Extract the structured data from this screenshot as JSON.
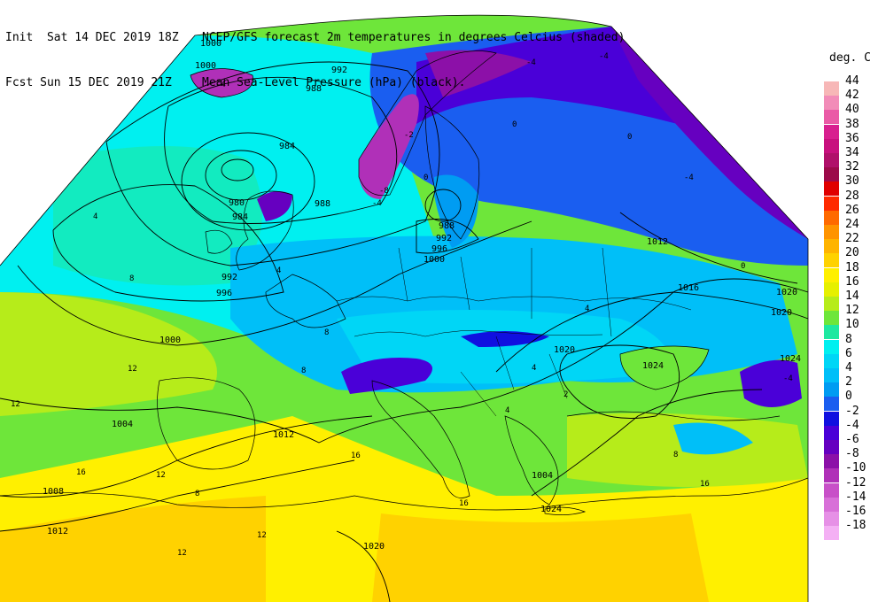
{
  "header": {
    "left_line1": "Init  Sat 14 DEC 2019 18Z",
    "left_line2": "Fcst Sun 15 DEC 2019 21Z",
    "right_line1": "NCEP/GFS forecast 2m temperatures in degrees Celcius (shaded)",
    "right_line2": "Mean Sea-Level Pressure (hPa) (black)."
  },
  "legend": {
    "title": "deg. C",
    "entries": [
      {
        "label": "44",
        "color": "#f7b7b7"
      },
      {
        "label": "42",
        "color": "#f28cb8"
      },
      {
        "label": "40",
        "color": "#ea5aa6"
      },
      {
        "label": "38",
        "color": "#d81f8f"
      },
      {
        "label": "36",
        "color": "#c8107e"
      },
      {
        "label": "34",
        "color": "#b0106a"
      },
      {
        "label": "32",
        "color": "#9c0a4a"
      },
      {
        "label": "30",
        "color": "#e00000"
      },
      {
        "label": "28",
        "color": "#ff2a00"
      },
      {
        "label": "26",
        "color": "#ff6a00"
      },
      {
        "label": "24",
        "color": "#ff9400"
      },
      {
        "label": "22",
        "color": "#ffb400"
      },
      {
        "label": "20",
        "color": "#ffd200"
      },
      {
        "label": "18",
        "color": "#fff000"
      },
      {
        "label": "16",
        "color": "#e6f000"
      },
      {
        "label": "14",
        "color": "#b6ec1a"
      },
      {
        "label": "12",
        "color": "#6ee63a"
      },
      {
        "label": "10",
        "color": "#1ee8a0"
      },
      {
        "label": "8",
        "color": "#00f0f0"
      },
      {
        "label": "6",
        "color": "#00d6f6"
      },
      {
        "label": "4",
        "color": "#00bff8"
      },
      {
        "label": "2",
        "color": "#009cf2"
      },
      {
        "label": "0",
        "color": "#1a5ef0"
      },
      {
        "label": "-2",
        "color": "#1010e0"
      },
      {
        "label": "-4",
        "color": "#4a00d8"
      },
      {
        "label": "-6",
        "color": "#6600c0"
      },
      {
        "label": "-8",
        "color": "#8c10a8"
      },
      {
        "label": "-10",
        "color": "#b030b8"
      },
      {
        "label": "-12",
        "color": "#c850c8"
      },
      {
        "label": "-14",
        "color": "#d870d8"
      },
      {
        "label": "-16",
        "color": "#e690e6"
      },
      {
        "label": "-18",
        "color": "#f4b0f4"
      }
    ]
  },
  "isobar_labels": [
    "1000",
    "992",
    "988",
    "984",
    "980",
    "984",
    "988",
    "988",
    "992",
    "996",
    "1000",
    "992",
    "996",
    "1000",
    "1004",
    "1008",
    "1012",
    "1012",
    "1016",
    "1020",
    "1020",
    "1020",
    "1024",
    "1024",
    "1020",
    "1024",
    "1012",
    "1000",
    "1004"
  ],
  "temperature_labels": [
    "-4",
    "-4",
    "-8",
    "-2",
    "-4",
    "0",
    "0",
    "0",
    "8",
    "4",
    "8",
    "12",
    "12",
    "16",
    "16",
    "12",
    "8",
    "4",
    "4",
    "2",
    "4",
    "-4",
    "4",
    "8",
    "12",
    "16",
    "16",
    "12",
    "8",
    "-4",
    "0",
    "-4"
  ]
}
